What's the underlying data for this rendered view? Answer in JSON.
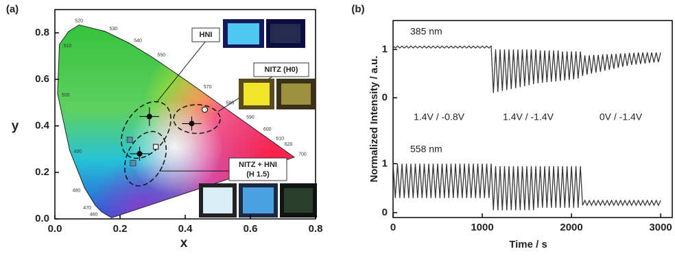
{
  "chart_data": [
    {
      "type": "scatter",
      "label": "(a)",
      "xlabel": "x",
      "ylabel": "y",
      "xlim": [
        0,
        0.8
      ],
      "ylim": [
        0,
        0.9
      ],
      "xticks": [
        {
          "value": 0,
          "label": "0.0"
        },
        0.2,
        0.4,
        0.6,
        0.8
      ],
      "yticks": [
        {
          "value": 0,
          "label": "0.0"
        },
        0.2,
        0.4,
        0.6,
        0.8
      ],
      "locus_labels": [
        {
          "wavelength": 520,
          "x": 0.074,
          "y": 0.834
        },
        {
          "wavelength": 530,
          "x": 0.155,
          "y": 0.806
        },
        {
          "wavelength": 540,
          "x": 0.23,
          "y": 0.754
        },
        {
          "wavelength": 550,
          "x": 0.302,
          "y": 0.692
        },
        {
          "wavelength": 570,
          "x": 0.444,
          "y": 0.555
        },
        {
          "wavelength": 580,
          "x": 0.513,
          "y": 0.487
        },
        {
          "wavelength": 590,
          "x": 0.575,
          "y": 0.424
        },
        {
          "wavelength": 600,
          "x": 0.627,
          "y": 0.373
        },
        {
          "wavelength": 610,
          "x": 0.666,
          "y": 0.334
        },
        {
          "wavelength": 620,
          "x": 0.692,
          "y": 0.308
        },
        {
          "wavelength": 700,
          "x": 0.735,
          "y": 0.265
        },
        {
          "wavelength": 510,
          "x": 0.014,
          "y": 0.75
        },
        {
          "wavelength": 500,
          "x": 0.008,
          "y": 0.538
        },
        {
          "wavelength": 490,
          "x": 0.045,
          "y": 0.295
        },
        {
          "wavelength": 480,
          "x": 0.091,
          "y": 0.133
        },
        {
          "wavelength": 470,
          "x": 0.124,
          "y": 0.058
        },
        {
          "wavelength": 460,
          "x": 0.144,
          "y": 0.03
        }
      ],
      "series": [
        {
          "marker": "filled-circle",
          "color": "#000000",
          "x": [
            0.29,
            0.42,
            0.26
          ],
          "values": [
            0.44,
            0.41,
            0.28
          ],
          "xerr": [
            0.03,
            0.03,
            0.03
          ],
          "yerr": [
            0.04,
            0.03,
            0.03
          ]
        },
        {
          "marker": "open-circle",
          "color": "#000000",
          "x": [
            0.46
          ],
          "values": [
            0.47
          ]
        },
        {
          "marker": "open-square",
          "color": "#000000",
          "x": [
            0.31
          ],
          "values": [
            0.31
          ]
        },
        {
          "marker": "square",
          "color": "#5b8fa8",
          "x": [
            0.23,
            0.24
          ],
          "values": [
            0.34,
            0.24
          ]
        }
      ],
      "annotations": [
        "HNI",
        "NITZ (H0)",
        "NITZ + HNI",
        "(H 1.5)"
      ]
    },
    {
      "type": "line",
      "label": "(b)",
      "ylabel": "Normalized Intensity / a.u.",
      "annotations": [
        "1.4V / -0.8V",
        "1.4V / -1.4V",
        "0V / -1.4V"
      ],
      "xlim": [
        0,
        3130
      ],
      "ylim": [
        -0.2,
        1.6
      ],
      "yticks": [
        0,
        1
      ],
      "x": [
        0,
        25,
        50,
        75,
        100,
        125,
        150,
        175,
        200,
        225,
        250,
        275,
        300,
        325,
        350,
        375,
        400,
        425,
        450,
        475,
        500,
        525,
        550,
        575,
        600,
        625,
        650,
        675,
        700,
        725,
        750,
        775,
        800,
        825,
        850,
        875,
        900,
        925,
        950,
        975,
        1000,
        1025,
        1050,
        1075,
        1100,
        1125,
        1150,
        1175,
        1200,
        1225,
        1250,
        1275,
        1300,
        1325,
        1350,
        1375,
        1400,
        1425,
        1450,
        1475,
        1500,
        1525,
        1550,
        1575,
        1600,
        1625,
        1650,
        1675,
        1700,
        1725,
        1750,
        1775,
        1800,
        1825,
        1850,
        1875,
        1900,
        1925,
        1950,
        1975,
        2000,
        2025,
        2050,
        2075,
        2100,
        2125,
        2150,
        2175,
        2200,
        2225,
        2250,
        2275,
        2300,
        2325,
        2350,
        2375,
        2400,
        2425,
        2450,
        2475,
        2500,
        2525,
        2550,
        2575,
        2600,
        2625,
        2650,
        2675,
        2700,
        2725,
        2750,
        2775,
        2800,
        2825,
        2850,
        2875,
        2900,
        2925,
        2950,
        2975,
        3000
      ],
      "series": [
        {
          "name": "385 nm",
          "color": "#333333",
          "values": [
            1.07,
            1.03,
            1.07,
            1.03,
            1.07,
            1.03,
            1.07,
            1.03,
            1.07,
            1.03,
            1.07,
            1.03,
            1.07,
            1.03,
            1.07,
            1.03,
            1.07,
            1.03,
            1.07,
            1.03,
            1.07,
            1.03,
            1.07,
            1.03,
            1.07,
            1.03,
            1.07,
            1.03,
            1.07,
            1.03,
            1.07,
            1.03,
            1.07,
            1.03,
            1.07,
            1.03,
            1.07,
            1.03,
            1.07,
            1.03,
            1.07,
            1.03,
            1.07,
            1.03,
            1.07,
            0.1,
            1,
            0.12,
            1,
            0.14,
            1,
            0.16,
            1,
            0.18,
            1,
            0.2,
            1,
            0.22,
            1,
            0.24,
            1,
            0.26,
            1,
            0.28,
            1,
            0.3,
            0.98,
            0.31,
            0.98,
            0.32,
            0.98,
            0.33,
            0.98,
            0.34,
            0.98,
            0.35,
            0.96,
            0.36,
            0.96,
            0.37,
            0.96,
            0.38,
            0.96,
            0.4,
            0.96,
            0.45,
            0.88,
            0.48,
            0.88,
            0.5,
            0.89,
            0.52,
            0.89,
            0.54,
            0.9,
            0.56,
            0.9,
            0.58,
            0.91,
            0.6,
            0.91,
            0.62,
            0.92,
            0.64,
            0.92,
            0.66,
            0.93,
            0.68,
            0.93,
            0.69,
            0.94,
            0.7,
            0.94,
            0.71,
            0.94,
            0.72,
            0.94,
            0.73,
            0.94,
            0.74,
            0.94
          ]
        }
      ]
    },
    {
      "type": "line",
      "xlabel": "Time / s",
      "xlim": [
        0,
        3130
      ],
      "ylim": [
        -0.1,
        1.55
      ],
      "xticks": [
        0,
        1000,
        2000,
        3000
      ],
      "yticks": [
        0,
        1
      ],
      "x": [
        0,
        25,
        50,
        75,
        100,
        125,
        150,
        175,
        200,
        225,
        250,
        275,
        300,
        325,
        350,
        375,
        400,
        425,
        450,
        475,
        500,
        525,
        550,
        575,
        600,
        625,
        650,
        675,
        700,
        725,
        750,
        775,
        800,
        825,
        850,
        875,
        900,
        925,
        950,
        975,
        1000,
        1025,
        1050,
        1075,
        1100,
        1125,
        1150,
        1175,
        1200,
        1225,
        1250,
        1275,
        1300,
        1325,
        1350,
        1375,
        1400,
        1425,
        1450,
        1475,
        1500,
        1525,
        1550,
        1575,
        1600,
        1625,
        1650,
        1675,
        1700,
        1725,
        1750,
        1775,
        1800,
        1825,
        1850,
        1875,
        1900,
        1925,
        1950,
        1975,
        2000,
        2025,
        2050,
        2075,
        2100,
        2125,
        2150,
        2175,
        2200,
        2225,
        2250,
        2275,
        2300,
        2325,
        2350,
        2375,
        2400,
        2425,
        2450,
        2475,
        2500,
        2525,
        2550,
        2575,
        2600,
        2625,
        2650,
        2675,
        2700,
        2725,
        2750,
        2775,
        2800,
        2825,
        2850,
        2875,
        2900,
        2925,
        2950,
        2975,
        3000
      ],
      "series": [
        {
          "name": "558 nm",
          "color": "#333333",
          "values": [
            1,
            0.3,
            1,
            0.3,
            1,
            0.3,
            1,
            0.3,
            1,
            0.3,
            1,
            0.3,
            1,
            0.3,
            1,
            0.3,
            1,
            0.3,
            1,
            0.3,
            1,
            0.3,
            1,
            0.3,
            1,
            0.3,
            1,
            0.3,
            1,
            0.3,
            1,
            0.3,
            1,
            0.3,
            1,
            0.3,
            1,
            0.3,
            1,
            0.3,
            1,
            0.3,
            1,
            0.3,
            1,
            0.05,
            0.95,
            0.05,
            0.95,
            0.05,
            0.95,
            0.05,
            0.95,
            0.05,
            0.95,
            0.05,
            0.95,
            0.05,
            0.95,
            0.05,
            0.95,
            0.05,
            0.95,
            0.05,
            0.95,
            0.1,
            0.95,
            0.1,
            0.95,
            0.1,
            0.95,
            0.1,
            0.95,
            0.1,
            0.95,
            0.1,
            0.95,
            0.1,
            0.95,
            0.1,
            0.95,
            0.1,
            0.95,
            0.1,
            0.95,
            0.15,
            0.25,
            0.15,
            0.25,
            0.15,
            0.25,
            0.15,
            0.25,
            0.15,
            0.25,
            0.15,
            0.25,
            0.15,
            0.25,
            0.15,
            0.25,
            0.15,
            0.25,
            0.15,
            0.25,
            0.15,
            0.25,
            0.15,
            0.25,
            0.15,
            0.25,
            0.15,
            0.25,
            0.15,
            0.25,
            0.15,
            0.25,
            0.15,
            0.25,
            0.15,
            0.25
          ]
        }
      ]
    }
  ]
}
